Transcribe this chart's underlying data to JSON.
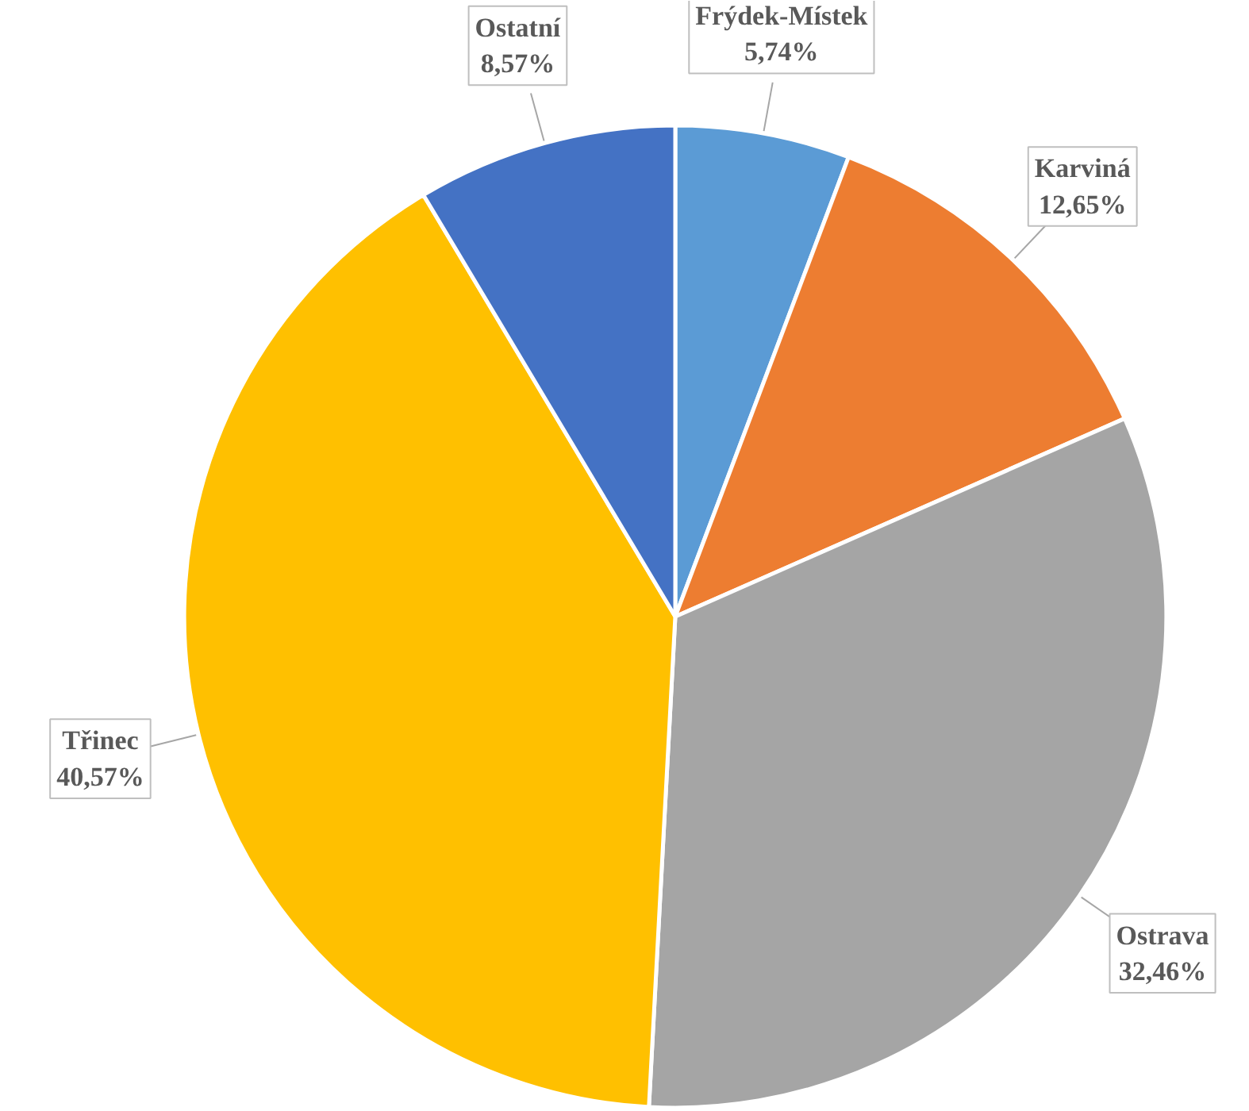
{
  "chart_data": {
    "type": "pie",
    "categories": [
      "Frýdek-Místek",
      "Karviná",
      "Ostrava",
      "Třinec",
      "Ostatní"
    ],
    "values": [
      5.74,
      12.65,
      32.46,
      40.57,
      8.57
    ],
    "value_labels": [
      "5,74%",
      "12,65%",
      "32,46%",
      "40,57%",
      "8,57%"
    ],
    "colors": [
      "#5b9bd5",
      "#ed7d31",
      "#a5a5a5",
      "#ffc000",
      "#4472c4"
    ]
  }
}
